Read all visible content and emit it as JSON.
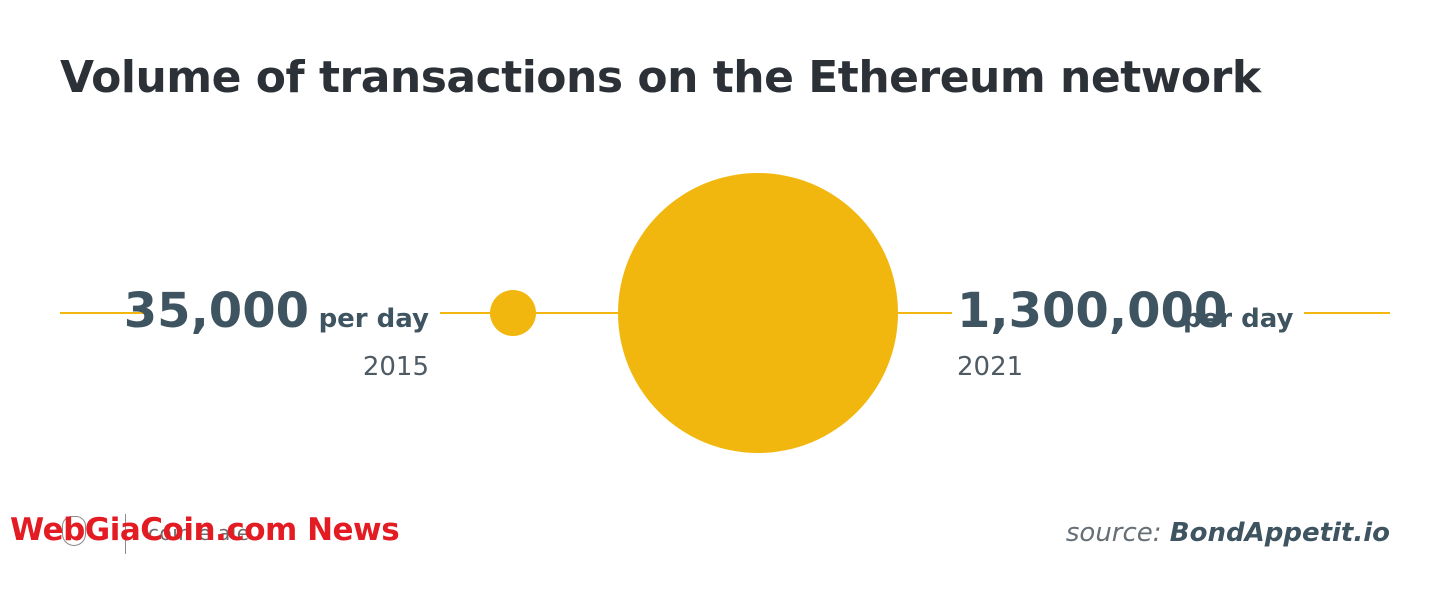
{
  "title": "Volume of transactions on the Ethereum network",
  "chart_data": {
    "type": "bubble",
    "unit": "per day",
    "points": [
      {
        "label": "35,000",
        "year": "2015",
        "value": 35000
      },
      {
        "label": "1,300,000",
        "year": "2021",
        "value": 1300000
      }
    ],
    "accent_color": "#F2B70E"
  },
  "footer": {
    "logo_text": "coin e           ale",
    "watermark": "WebGiaCoin.com News",
    "source_prefix": "source:",
    "source_name": "BondAppetit.io"
  }
}
